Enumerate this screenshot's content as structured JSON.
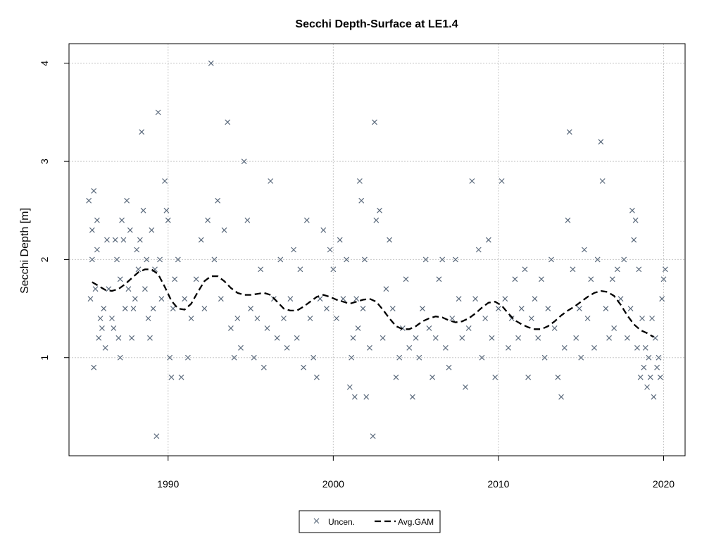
{
  "chart_data": {
    "type": "scatter",
    "title": "Secchi Depth-Surface at LE1.4",
    "xlabel": "",
    "ylabel": "Secchi Depth [m]",
    "xlim": [
      1984.0,
      2021.3
    ],
    "ylim": [
      0.0,
      4.2
    ],
    "x_ticks": [
      1990,
      2000,
      2010,
      2020
    ],
    "y_ticks": [
      1,
      2,
      3,
      4
    ],
    "grid": true,
    "legend_position": "bottom",
    "series": [
      {
        "name": "Uncen.",
        "style": "x-marker",
        "color": "#5c6b7d",
        "points": [
          [
            1985.2,
            2.6
          ],
          [
            1985.3,
            1.6
          ],
          [
            1985.4,
            2.0
          ],
          [
            1985.4,
            2.3
          ],
          [
            1985.5,
            0.9
          ],
          [
            1985.5,
            2.7
          ],
          [
            1985.6,
            1.7
          ],
          [
            1985.7,
            2.1
          ],
          [
            1985.7,
            2.4
          ],
          [
            1985.8,
            1.2
          ],
          [
            1985.9,
            1.4
          ],
          [
            1986.0,
            1.3
          ],
          [
            1986.1,
            1.5
          ],
          [
            1986.2,
            1.1
          ],
          [
            1986.3,
            2.2
          ],
          [
            1986.4,
            1.7
          ],
          [
            1986.6,
            1.4
          ],
          [
            1986.7,
            1.3
          ],
          [
            1986.8,
            2.2
          ],
          [
            1986.9,
            2.0
          ],
          [
            1987.0,
            1.2
          ],
          [
            1987.1,
            1.0
          ],
          [
            1987.1,
            1.8
          ],
          [
            1987.2,
            2.4
          ],
          [
            1987.3,
            2.2
          ],
          [
            1987.4,
            1.5
          ],
          [
            1987.5,
            2.6
          ],
          [
            1987.6,
            1.7
          ],
          [
            1987.7,
            2.3
          ],
          [
            1987.8,
            1.2
          ],
          [
            1987.9,
            1.5
          ],
          [
            1988.0,
            1.6
          ],
          [
            1988.1,
            2.1
          ],
          [
            1988.2,
            1.9
          ],
          [
            1988.3,
            2.2
          ],
          [
            1988.4,
            3.3
          ],
          [
            1988.5,
            2.5
          ],
          [
            1988.6,
            1.7
          ],
          [
            1988.7,
            2.0
          ],
          [
            1988.8,
            1.4
          ],
          [
            1988.9,
            1.2
          ],
          [
            1989.0,
            2.3
          ],
          [
            1989.1,
            1.5
          ],
          [
            1989.2,
            1.9
          ],
          [
            1989.3,
            0.2
          ],
          [
            1989.4,
            3.5
          ],
          [
            1989.5,
            2.0
          ],
          [
            1989.6,
            1.6
          ],
          [
            1989.8,
            2.8
          ],
          [
            1989.9,
            2.5
          ],
          [
            1990.0,
            2.4
          ],
          [
            1990.1,
            1.0
          ],
          [
            1990.2,
            0.8
          ],
          [
            1990.3,
            1.5
          ],
          [
            1990.4,
            1.8
          ],
          [
            1990.6,
            2.0
          ],
          [
            1990.8,
            0.8
          ],
          [
            1991.0,
            1.6
          ],
          [
            1991.2,
            1.0
          ],
          [
            1991.4,
            1.4
          ],
          [
            1991.7,
            1.8
          ],
          [
            1992.0,
            2.2
          ],
          [
            1992.2,
            1.5
          ],
          [
            1992.4,
            2.4
          ],
          [
            1992.6,
            4.0
          ],
          [
            1992.8,
            2.0
          ],
          [
            1993.0,
            2.6
          ],
          [
            1993.2,
            1.6
          ],
          [
            1993.4,
            2.3
          ],
          [
            1993.6,
            3.4
          ],
          [
            1993.8,
            1.3
          ],
          [
            1994.0,
            1.0
          ],
          [
            1994.2,
            1.4
          ],
          [
            1994.4,
            1.1
          ],
          [
            1994.6,
            3.0
          ],
          [
            1994.8,
            2.4
          ],
          [
            1995.0,
            1.5
          ],
          [
            1995.2,
            1.0
          ],
          [
            1995.4,
            1.4
          ],
          [
            1995.6,
            1.9
          ],
          [
            1995.8,
            0.9
          ],
          [
            1996.0,
            1.3
          ],
          [
            1996.2,
            2.8
          ],
          [
            1996.4,
            1.6
          ],
          [
            1996.6,
            1.2
          ],
          [
            1996.8,
            2.0
          ],
          [
            1997.0,
            1.4
          ],
          [
            1997.2,
            1.1
          ],
          [
            1997.4,
            1.6
          ],
          [
            1997.6,
            2.1
          ],
          [
            1997.8,
            1.2
          ],
          [
            1998.0,
            1.9
          ],
          [
            1998.2,
            0.9
          ],
          [
            1998.4,
            2.4
          ],
          [
            1998.6,
            1.4
          ],
          [
            1998.8,
            1.0
          ],
          [
            1999.0,
            0.8
          ],
          [
            1999.2,
            1.6
          ],
          [
            1999.4,
            2.3
          ],
          [
            1999.6,
            1.5
          ],
          [
            1999.8,
            2.1
          ],
          [
            2000.0,
            1.9
          ],
          [
            2000.2,
            1.4
          ],
          [
            2000.4,
            2.2
          ],
          [
            2000.6,
            1.6
          ],
          [
            2000.8,
            2.0
          ],
          [
            2001.0,
            0.7
          ],
          [
            2001.1,
            1.0
          ],
          [
            2001.2,
            1.2
          ],
          [
            2001.3,
            0.6
          ],
          [
            2001.4,
            1.6
          ],
          [
            2001.5,
            1.3
          ],
          [
            2001.6,
            2.8
          ],
          [
            2001.7,
            2.6
          ],
          [
            2001.8,
            1.5
          ],
          [
            2001.9,
            2.0
          ],
          [
            2002.0,
            0.6
          ],
          [
            2002.2,
            1.1
          ],
          [
            2002.4,
            0.2
          ],
          [
            2002.5,
            3.4
          ],
          [
            2002.6,
            2.4
          ],
          [
            2002.8,
            2.5
          ],
          [
            2003.0,
            1.2
          ],
          [
            2003.2,
            1.7
          ],
          [
            2003.4,
            2.2
          ],
          [
            2003.6,
            1.5
          ],
          [
            2003.8,
            0.8
          ],
          [
            2004.0,
            1.0
          ],
          [
            2004.2,
            1.3
          ],
          [
            2004.4,
            1.8
          ],
          [
            2004.6,
            1.1
          ],
          [
            2004.8,
            0.6
          ],
          [
            2005.0,
            1.2
          ],
          [
            2005.2,
            1.0
          ],
          [
            2005.4,
            1.5
          ],
          [
            2005.6,
            2.0
          ],
          [
            2005.8,
            1.3
          ],
          [
            2006.0,
            0.8
          ],
          [
            2006.2,
            1.2
          ],
          [
            2006.4,
            1.8
          ],
          [
            2006.6,
            2.0
          ],
          [
            2006.8,
            1.1
          ],
          [
            2007.0,
            0.9
          ],
          [
            2007.2,
            1.4
          ],
          [
            2007.4,
            2.0
          ],
          [
            2007.6,
            1.6
          ],
          [
            2007.8,
            1.2
          ],
          [
            2008.0,
            0.7
          ],
          [
            2008.2,
            1.3
          ],
          [
            2008.4,
            2.8
          ],
          [
            2008.6,
            1.6
          ],
          [
            2008.8,
            2.1
          ],
          [
            2009.0,
            1.0
          ],
          [
            2009.2,
            1.4
          ],
          [
            2009.4,
            2.2
          ],
          [
            2009.6,
            1.2
          ],
          [
            2009.8,
            0.8
          ],
          [
            2010.0,
            1.5
          ],
          [
            2010.2,
            2.8
          ],
          [
            2010.4,
            1.6
          ],
          [
            2010.6,
            1.1
          ],
          [
            2010.8,
            1.4
          ],
          [
            2011.0,
            1.8
          ],
          [
            2011.2,
            1.2
          ],
          [
            2011.4,
            1.5
          ],
          [
            2011.6,
            1.9
          ],
          [
            2011.8,
            0.8
          ],
          [
            2012.0,
            1.4
          ],
          [
            2012.2,
            1.6
          ],
          [
            2012.4,
            1.2
          ],
          [
            2012.6,
            1.8
          ],
          [
            2012.8,
            1.0
          ],
          [
            2013.0,
            1.5
          ],
          [
            2013.2,
            2.0
          ],
          [
            2013.4,
            1.3
          ],
          [
            2013.6,
            0.8
          ],
          [
            2013.8,
            0.6
          ],
          [
            2014.0,
            1.1
          ],
          [
            2014.2,
            2.4
          ],
          [
            2014.3,
            3.3
          ],
          [
            2014.5,
            1.9
          ],
          [
            2014.7,
            1.2
          ],
          [
            2014.9,
            1.5
          ],
          [
            2015.0,
            1.0
          ],
          [
            2015.2,
            2.1
          ],
          [
            2015.4,
            1.4
          ],
          [
            2015.6,
            1.8
          ],
          [
            2015.8,
            1.1
          ],
          [
            2016.0,
            2.0
          ],
          [
            2016.2,
            3.2
          ],
          [
            2016.3,
            2.8
          ],
          [
            2016.5,
            1.5
          ],
          [
            2016.7,
            1.2
          ],
          [
            2016.9,
            1.8
          ],
          [
            2017.0,
            1.3
          ],
          [
            2017.2,
            1.9
          ],
          [
            2017.4,
            1.6
          ],
          [
            2017.6,
            2.0
          ],
          [
            2017.8,
            1.2
          ],
          [
            2018.0,
            1.5
          ],
          [
            2018.1,
            2.5
          ],
          [
            2018.2,
            2.2
          ],
          [
            2018.3,
            2.4
          ],
          [
            2018.4,
            1.1
          ],
          [
            2018.5,
            1.9
          ],
          [
            2018.6,
            0.8
          ],
          [
            2018.7,
            1.4
          ],
          [
            2018.8,
            0.9
          ],
          [
            2018.9,
            1.1
          ],
          [
            2019.0,
            0.7
          ],
          [
            2019.1,
            1.0
          ],
          [
            2019.2,
            0.8
          ],
          [
            2019.3,
            1.4
          ],
          [
            2019.4,
            0.6
          ],
          [
            2019.5,
            1.2
          ],
          [
            2019.6,
            0.9
          ],
          [
            2019.7,
            1.0
          ],
          [
            2019.8,
            0.8
          ],
          [
            2019.9,
            1.6
          ],
          [
            2020.0,
            1.8
          ],
          [
            2020.1,
            1.9
          ]
        ]
      },
      {
        "name": "Avg.GAM",
        "style": "dashed-line",
        "color": "#000000",
        "points": [
          [
            1985.4,
            1.77
          ],
          [
            1985.8,
            1.73
          ],
          [
            1986.2,
            1.69
          ],
          [
            1986.6,
            1.68
          ],
          [
            1987.0,
            1.7
          ],
          [
            1987.4,
            1.75
          ],
          [
            1987.8,
            1.81
          ],
          [
            1988.2,
            1.87
          ],
          [
            1988.6,
            1.9
          ],
          [
            1989.0,
            1.9
          ],
          [
            1989.4,
            1.85
          ],
          [
            1989.8,
            1.72
          ],
          [
            1990.2,
            1.58
          ],
          [
            1990.6,
            1.5
          ],
          [
            1991.0,
            1.49
          ],
          [
            1991.4,
            1.55
          ],
          [
            1991.8,
            1.67
          ],
          [
            1992.2,
            1.78
          ],
          [
            1992.6,
            1.83
          ],
          [
            1993.0,
            1.83
          ],
          [
            1993.4,
            1.78
          ],
          [
            1993.8,
            1.71
          ],
          [
            1994.2,
            1.66
          ],
          [
            1994.6,
            1.64
          ],
          [
            1995.0,
            1.64
          ],
          [
            1995.4,
            1.65
          ],
          [
            1995.8,
            1.66
          ],
          [
            1996.2,
            1.64
          ],
          [
            1996.6,
            1.57
          ],
          [
            1997.0,
            1.5
          ],
          [
            1997.4,
            1.48
          ],
          [
            1997.8,
            1.48
          ],
          [
            1998.2,
            1.52
          ],
          [
            1998.6,
            1.57
          ],
          [
            1999.0,
            1.62
          ],
          [
            1999.4,
            1.64
          ],
          [
            1999.8,
            1.62
          ],
          [
            2000.2,
            1.59
          ],
          [
            2000.6,
            1.57
          ],
          [
            2001.0,
            1.55
          ],
          [
            2001.4,
            1.57
          ],
          [
            2001.8,
            1.59
          ],
          [
            2002.2,
            1.6
          ],
          [
            2002.6,
            1.57
          ],
          [
            2003.0,
            1.49
          ],
          [
            2003.4,
            1.4
          ],
          [
            2003.8,
            1.32
          ],
          [
            2004.2,
            1.29
          ],
          [
            2004.6,
            1.29
          ],
          [
            2005.0,
            1.32
          ],
          [
            2005.4,
            1.37
          ],
          [
            2005.8,
            1.4
          ],
          [
            2006.2,
            1.42
          ],
          [
            2006.6,
            1.41
          ],
          [
            2007.0,
            1.38
          ],
          [
            2007.4,
            1.36
          ],
          [
            2007.8,
            1.37
          ],
          [
            2008.2,
            1.4
          ],
          [
            2008.6,
            1.45
          ],
          [
            2009.0,
            1.51
          ],
          [
            2009.4,
            1.56
          ],
          [
            2009.8,
            1.57
          ],
          [
            2010.2,
            1.53
          ],
          [
            2010.6,
            1.45
          ],
          [
            2011.0,
            1.38
          ],
          [
            2011.4,
            1.34
          ],
          [
            2011.8,
            1.31
          ],
          [
            2012.2,
            1.29
          ],
          [
            2012.6,
            1.29
          ],
          [
            2013.0,
            1.32
          ],
          [
            2013.4,
            1.37
          ],
          [
            2013.8,
            1.43
          ],
          [
            2014.2,
            1.48
          ],
          [
            2014.6,
            1.52
          ],
          [
            2015.0,
            1.57
          ],
          [
            2015.4,
            1.62
          ],
          [
            2015.8,
            1.66
          ],
          [
            2016.2,
            1.68
          ],
          [
            2016.6,
            1.67
          ],
          [
            2017.0,
            1.63
          ],
          [
            2017.4,
            1.54
          ],
          [
            2017.8,
            1.43
          ],
          [
            2018.2,
            1.34
          ],
          [
            2018.6,
            1.28
          ],
          [
            2019.0,
            1.25
          ],
          [
            2019.4,
            1.21
          ]
        ]
      }
    ]
  }
}
